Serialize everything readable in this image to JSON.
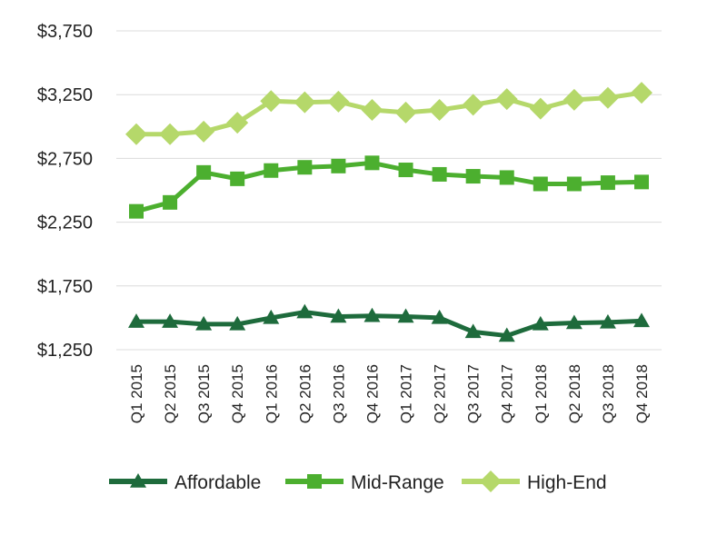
{
  "chart_data": {
    "type": "line",
    "title": "",
    "xlabel": "",
    "ylabel": "",
    "categories": [
      "Q1 2015",
      "Q2 2015",
      "Q3 2015",
      "Q4 2015",
      "Q1 2016",
      "Q2 2016",
      "Q3 2016",
      "Q4 2016",
      "Q1 2017",
      "Q2 2017",
      "Q3 2017",
      "Q4 2017",
      "Q1 2018",
      "Q2 2018",
      "Q3 2018",
      "Q4 2018"
    ],
    "ylim": [
      1250,
      3750
    ],
    "yticks": [
      1250,
      1750,
      2250,
      2750,
      3250,
      3750
    ],
    "ytick_labels": [
      "$1,250",
      "$1,750",
      "$2,250",
      "$2,750",
      "$3,250",
      "$3,750"
    ],
    "grid": true,
    "legend_position": "bottom",
    "series": [
      {
        "name": "Affordable",
        "color": "#1e6b3c",
        "marker": "triangle",
        "values": [
          1470,
          1470,
          1450,
          1450,
          1500,
          1545,
          1510,
          1515,
          1510,
          1500,
          1390,
          1360,
          1450,
          1460,
          1465,
          1475
        ]
      },
      {
        "name": "Mid-Range",
        "color": "#4caf2f",
        "marker": "square",
        "values": [
          2335,
          2405,
          2640,
          2590,
          2655,
          2680,
          2690,
          2715,
          2660,
          2625,
          2610,
          2600,
          2550,
          2550,
          2560,
          2565
        ]
      },
      {
        "name": "High-End",
        "color": "#b5d86a",
        "marker": "diamond",
        "values": [
          2940,
          2940,
          2960,
          3030,
          3200,
          3190,
          3195,
          3130,
          3110,
          3130,
          3170,
          3215,
          3140,
          3210,
          3225,
          3265
        ]
      }
    ]
  }
}
